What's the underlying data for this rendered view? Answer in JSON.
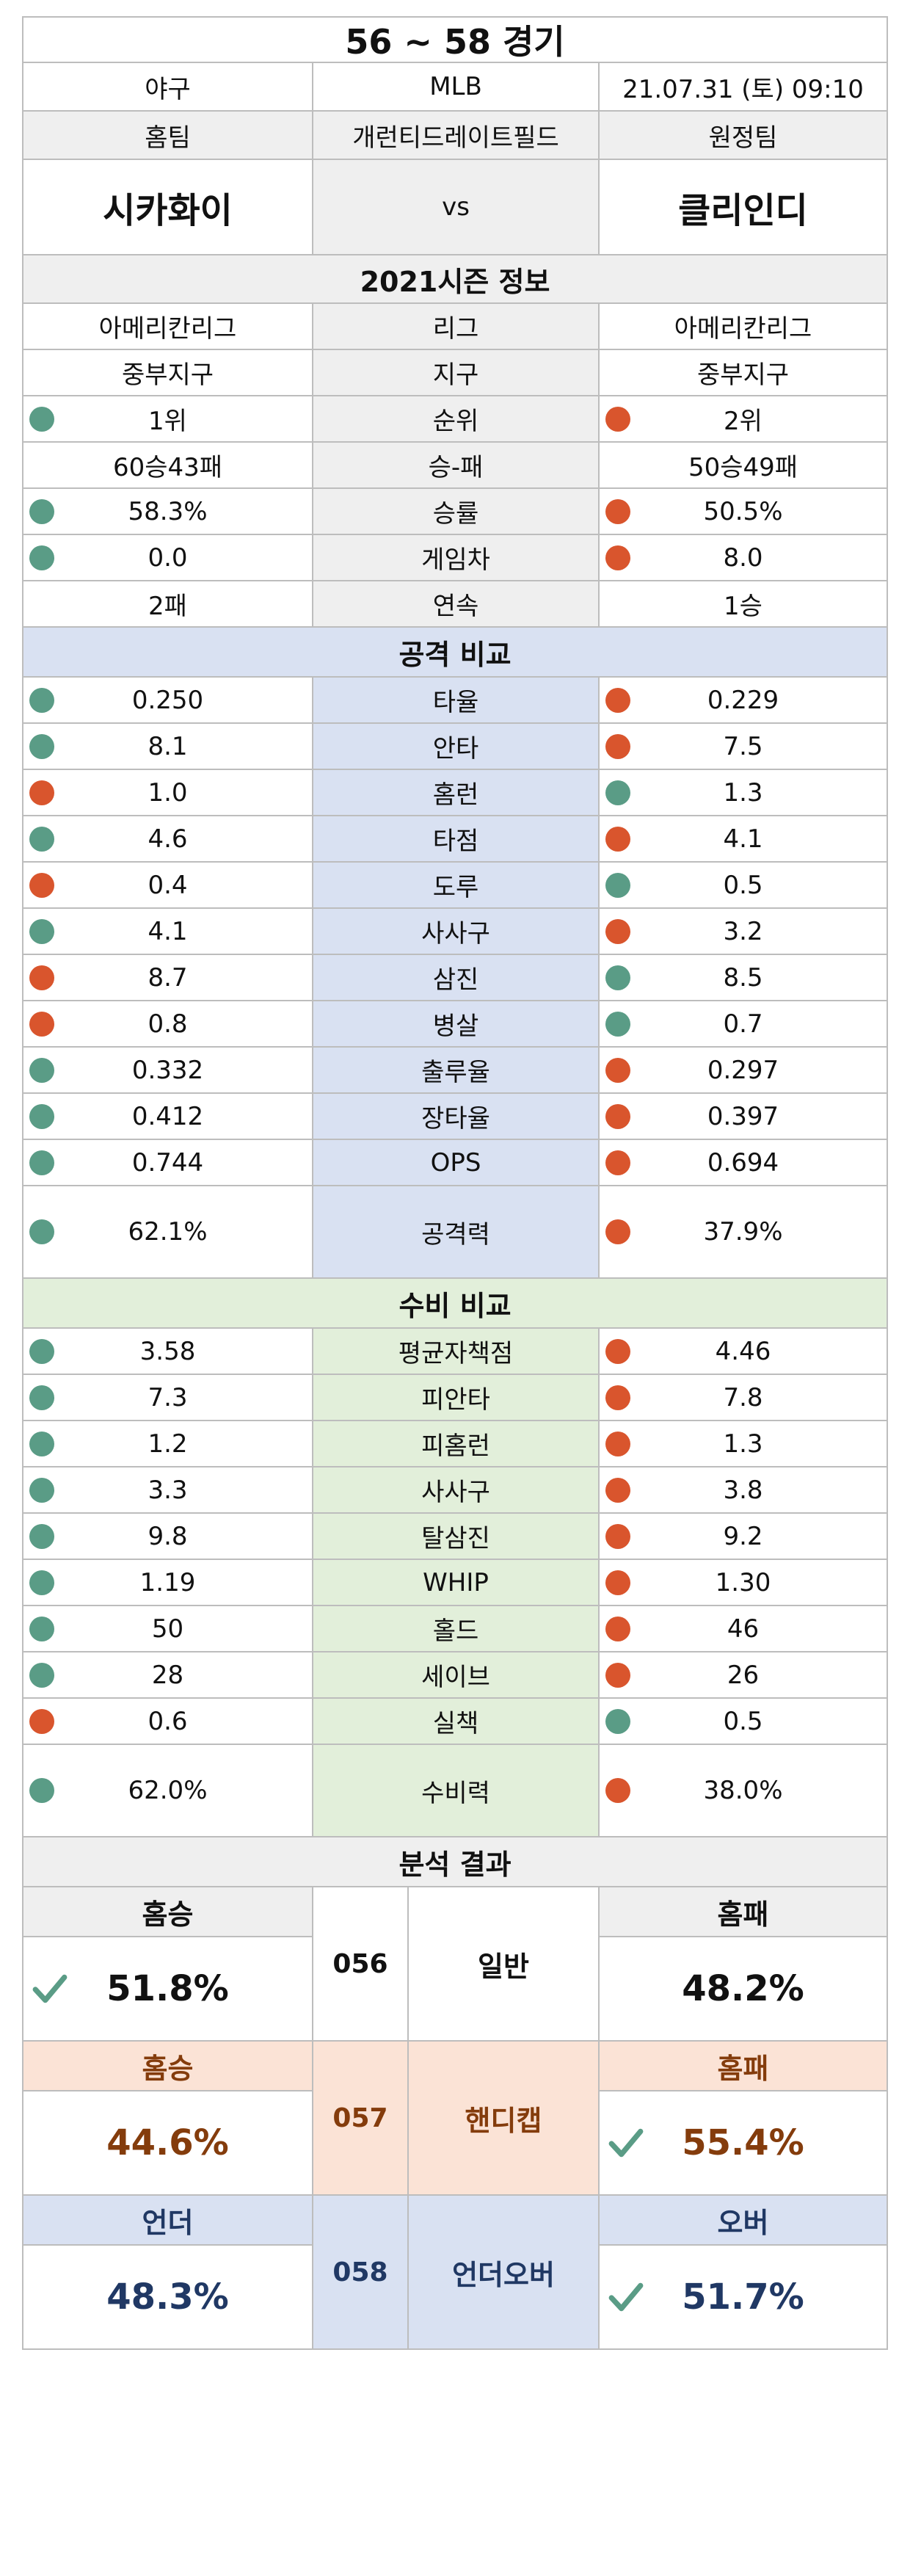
{
  "header": {
    "title": "56 ~ 58 경기"
  },
  "match": {
    "sport": "야구",
    "league": "MLB",
    "datetime": "21.07.31 (토) 09:10",
    "home_label": "홈팀",
    "stadium": "개런티드레이트필드",
    "away_label": "원정팀",
    "home_team": "시카화이",
    "vs": "vs",
    "away_team": "클리인디"
  },
  "season": {
    "title": "2021시즌 정보",
    "rows": [
      {
        "home": "아메리칸리그",
        "label": "리그",
        "away": "아메리칸리그",
        "hdot": "",
        "adot": ""
      },
      {
        "home": "중부지구",
        "label": "지구",
        "away": "중부지구",
        "hdot": "",
        "adot": ""
      },
      {
        "home": "1위",
        "label": "순위",
        "away": "2위",
        "hdot": "green",
        "adot": "red"
      },
      {
        "home": "60승43패",
        "label": "승-패",
        "away": "50승49패",
        "hdot": "",
        "adot": ""
      },
      {
        "home": "58.3%",
        "label": "승률",
        "away": "50.5%",
        "hdot": "green",
        "adot": "red"
      },
      {
        "home": "0.0",
        "label": "게임차",
        "away": "8.0",
        "hdot": "green",
        "adot": "red"
      },
      {
        "home": "2패",
        "label": "연속",
        "away": "1승",
        "hdot": "",
        "adot": ""
      }
    ]
  },
  "attack": {
    "title": "공격 비교",
    "rows": [
      {
        "home": "0.250",
        "label": "타율",
        "away": "0.229",
        "hdot": "green",
        "adot": "red"
      },
      {
        "home": "8.1",
        "label": "안타",
        "away": "7.5",
        "hdot": "green",
        "adot": "red"
      },
      {
        "home": "1.0",
        "label": "홈런",
        "away": "1.3",
        "hdot": "red",
        "adot": "green"
      },
      {
        "home": "4.6",
        "label": "타점",
        "away": "4.1",
        "hdot": "green",
        "adot": "red"
      },
      {
        "home": "0.4",
        "label": "도루",
        "away": "0.5",
        "hdot": "red",
        "adot": "green"
      },
      {
        "home": "4.1",
        "label": "사사구",
        "away": "3.2",
        "hdot": "green",
        "adot": "red"
      },
      {
        "home": "8.7",
        "label": "삼진",
        "away": "8.5",
        "hdot": "red",
        "adot": "green"
      },
      {
        "home": "0.8",
        "label": "병살",
        "away": "0.7",
        "hdot": "red",
        "adot": "green"
      },
      {
        "home": "0.332",
        "label": "출루율",
        "away": "0.297",
        "hdot": "green",
        "adot": "red"
      },
      {
        "home": "0.412",
        "label": "장타율",
        "away": "0.397",
        "hdot": "green",
        "adot": "red"
      },
      {
        "home": "0.744",
        "label": "OPS",
        "away": "0.694",
        "hdot": "green",
        "adot": "red"
      }
    ],
    "power": {
      "home": "62.1%",
      "label": "공격력",
      "away": "37.9%",
      "hdot": "green",
      "adot": "red"
    }
  },
  "defense": {
    "title": "수비 비교",
    "rows": [
      {
        "home": "3.58",
        "label": "평균자책점",
        "away": "4.46",
        "hdot": "green",
        "adot": "red"
      },
      {
        "home": "7.3",
        "label": "피안타",
        "away": "7.8",
        "hdot": "green",
        "adot": "red"
      },
      {
        "home": "1.2",
        "label": "피홈런",
        "away": "1.3",
        "hdot": "green",
        "adot": "red"
      },
      {
        "home": "3.3",
        "label": "사사구",
        "away": "3.8",
        "hdot": "green",
        "adot": "red"
      },
      {
        "home": "9.8",
        "label": "탈삼진",
        "away": "9.2",
        "hdot": "green",
        "adot": "red"
      },
      {
        "home": "1.19",
        "label": "WHIP",
        "away": "1.30",
        "hdot": "green",
        "adot": "red"
      },
      {
        "home": "50",
        "label": "홀드",
        "away": "46",
        "hdot": "green",
        "adot": "red"
      },
      {
        "home": "28",
        "label": "세이브",
        "away": "26",
        "hdot": "green",
        "adot": "red"
      },
      {
        "home": "0.6",
        "label": "실책",
        "away": "0.5",
        "hdot": "red",
        "adot": "green"
      }
    ],
    "power": {
      "home": "62.0%",
      "label": "수비력",
      "away": "38.0%",
      "hdot": "green",
      "adot": "red"
    }
  },
  "analysis": {
    "title": "분석 결과",
    "general": {
      "left_label": "홈승",
      "left_value": "51.8%",
      "code": "056",
      "type": "일반",
      "right_label": "홈패",
      "right_value": "48.2%",
      "check": "left"
    },
    "handicap": {
      "left_label": "홈승",
      "left_value": "44.6%",
      "code": "057",
      "type": "핸디캡",
      "right_label": "홈패",
      "right_value": "55.4%",
      "check": "right"
    },
    "overunder": {
      "left_label": "언더",
      "left_value": "48.3%",
      "code": "058",
      "type": "언더오버",
      "right_label": "오버",
      "right_value": "51.7%",
      "check": "right"
    }
  },
  "colors": {
    "green_dot": "#5a9c86",
    "red_dot": "#d9552d",
    "attack_bg": "#d9e1f2",
    "defense_bg": "#e2efda",
    "handicap_bg": "#fbe3d6"
  }
}
